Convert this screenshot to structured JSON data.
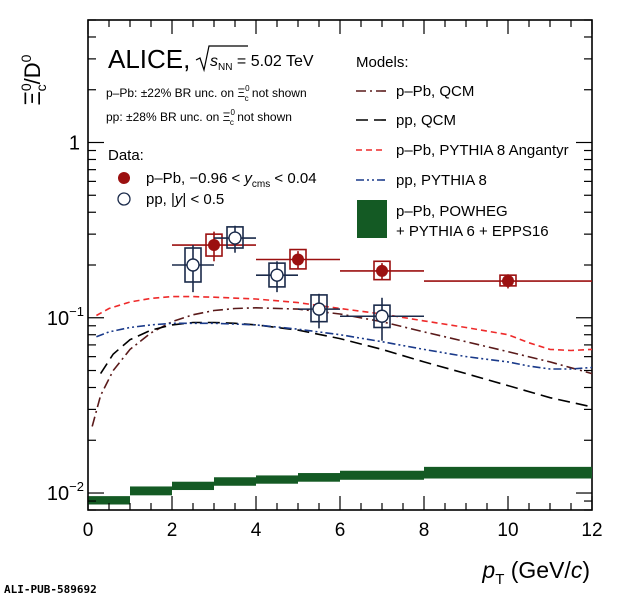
{
  "chart_data": {
    "type": "scatter",
    "title": "ALICE,",
    "energy": {
      "sym": "√s",
      "sub": "NN",
      "value": " = 5.02 TeV"
    },
    "notes": [
      {
        "lead": "p–Pb: ±22% BR unc. on Ξ",
        "sup": "0",
        "sub": "c",
        "tail": " not shown"
      },
      {
        "lead": "pp: ±28% BR unc. on Ξ",
        "sup": "0",
        "sub": "c",
        "tail": " not shown"
      }
    ],
    "ylabel": {
      "base": "Ξ",
      "sup": "0",
      "sub": "c",
      "mid": "/D",
      "sup2": "0"
    },
    "xlabel": {
      "p": "p",
      "sub": "T",
      "rest": " (GeV/",
      "c": "c",
      "close": ")"
    },
    "xlim": [
      0,
      12
    ],
    "ylim": [
      0.008,
      5
    ],
    "yscale": "log",
    "xticks": [
      "0",
      "2",
      "4",
      "6",
      "8",
      "10",
      "12"
    ],
    "yticks": [
      {
        "base": "10",
        "exp": "−2",
        "value": 0.01
      },
      {
        "base": "10",
        "exp": "−1",
        "value": 0.1
      },
      {
        "base": "1",
        "exp": "",
        "value": 1
      }
    ],
    "data_legend_title": "Data:",
    "models_legend_title": "Models:",
    "data_series": [
      {
        "name_parts": [
          "p–Pb, −0.96 < ",
          "y",
          "cms",
          " < 0.04"
        ],
        "color": "#9b1010",
        "marker": "filled-circle",
        "points": [
          {
            "x": 3.0,
            "xlo": 2.0,
            "xhi": 4.0,
            "y": 0.26,
            "stat": 0.05,
            "syslo": 0.225,
            "syshi": 0.3
          },
          {
            "x": 5.0,
            "xlo": 4.0,
            "xhi": 6.0,
            "y": 0.215,
            "stat": 0.025,
            "syslo": 0.19,
            "syshi": 0.245
          },
          {
            "x": 7.0,
            "xlo": 6.0,
            "xhi": 8.0,
            "y": 0.185,
            "stat": 0.02,
            "syslo": 0.165,
            "syshi": 0.21
          },
          {
            "x": 10.0,
            "xlo": 8.0,
            "xhi": 12.0,
            "y": 0.162,
            "stat": 0.015,
            "syslo": 0.152,
            "syshi": 0.175
          }
        ]
      },
      {
        "name_parts": [
          "pp, |",
          "y",
          "| < 0.5"
        ],
        "color": "#1a2a4a",
        "marker": "open-circle",
        "points": [
          {
            "x": 2.5,
            "xlo": 2.0,
            "xhi": 3.0,
            "y": 0.2,
            "stat": 0.06,
            "syslo": 0.16,
            "syshi": 0.25
          },
          {
            "x": 3.5,
            "xlo": 3.0,
            "xhi": 4.0,
            "y": 0.285,
            "stat": 0.05,
            "syslo": 0.25,
            "syshi": 0.33
          },
          {
            "x": 4.5,
            "xlo": 4.0,
            "xhi": 5.0,
            "y": 0.175,
            "stat": 0.035,
            "syslo": 0.15,
            "syshi": 0.205
          },
          {
            "x": 5.5,
            "xlo": 5.0,
            "xhi": 6.0,
            "y": 0.112,
            "stat": 0.025,
            "syslo": 0.095,
            "syshi": 0.135
          },
          {
            "x": 7.0,
            "xlo": 6.0,
            "xhi": 8.0,
            "y": 0.102,
            "stat": 0.028,
            "syslo": 0.088,
            "syshi": 0.118
          }
        ]
      }
    ],
    "model_series": [
      {
        "name": "p–Pb, QCM",
        "color": "#5a1a1a",
        "dash": "10,4,2,4",
        "x": [
          0.1,
          0.3,
          0.6,
          1.0,
          1.5,
          2.0,
          2.5,
          3.0,
          3.5,
          4.0,
          5.0,
          6.0,
          7.0,
          8.0,
          9.0,
          10.0,
          11.0,
          12.0
        ],
        "y": [
          0.024,
          0.036,
          0.05,
          0.066,
          0.082,
          0.095,
          0.104,
          0.11,
          0.113,
          0.114,
          0.112,
          0.105,
          0.095,
          0.083,
          0.073,
          0.064,
          0.056,
          0.048
        ]
      },
      {
        "name": "pp, QCM",
        "color": "#000000",
        "dash": "12,6",
        "x": [
          0.3,
          0.6,
          1.0,
          1.5,
          2.0,
          2.5,
          3.0,
          3.5,
          4.0,
          5.0,
          6.0,
          7.0,
          8.0,
          9.0,
          10.0,
          11.0,
          12.0
        ],
        "y": [
          0.048,
          0.062,
          0.075,
          0.085,
          0.091,
          0.094,
          0.094,
          0.093,
          0.091,
          0.085,
          0.076,
          0.066,
          0.056,
          0.048,
          0.041,
          0.035,
          0.031
        ]
      },
      {
        "name": "p–Pb, PYTHIA 8 Angantyr",
        "color": "#ee2a2a",
        "dash": "6,4",
        "x": [
          0.2,
          0.5,
          1.0,
          1.5,
          2.0,
          2.5,
          3.0,
          4.0,
          5.0,
          6.0,
          7.0,
          8.0,
          9.0,
          10.0,
          10.5,
          11.0,
          11.5,
          12.0
        ],
        "y": [
          0.103,
          0.113,
          0.123,
          0.129,
          0.132,
          0.132,
          0.131,
          0.128,
          0.122,
          0.113,
          0.105,
          0.096,
          0.088,
          0.08,
          0.072,
          0.066,
          0.065,
          0.066
        ]
      },
      {
        "name": "pp, PYTHIA 8",
        "color": "#1a3a8a",
        "dash": "8,3,2,3,2,3",
        "x": [
          0.2,
          0.5,
          1.0,
          1.5,
          2.0,
          3.0,
          4.0,
          5.0,
          6.0,
          7.0,
          8.0,
          9.0,
          10.0,
          10.5,
          11.0,
          11.5,
          12.0
        ],
        "y": [
          0.078,
          0.083,
          0.088,
          0.091,
          0.093,
          0.093,
          0.091,
          0.086,
          0.08,
          0.073,
          0.066,
          0.06,
          0.056,
          0.053,
          0.051,
          0.051,
          0.052
        ]
      }
    ],
    "band_series": {
      "name_lines": [
        "p–Pb, POWHEG",
        "+ PYTHIA 6 + EPPS16"
      ],
      "color": "#145a24",
      "bins": [
        {
          "xlo": 0,
          "xhi": 1,
          "ylo": 0.0086,
          "yhi": 0.0096
        },
        {
          "xlo": 1,
          "xhi": 2,
          "ylo": 0.0097,
          "yhi": 0.0109
        },
        {
          "xlo": 2,
          "xhi": 3,
          "ylo": 0.0104,
          "yhi": 0.0116
        },
        {
          "xlo": 3,
          "xhi": 4,
          "ylo": 0.011,
          "yhi": 0.0123
        },
        {
          "xlo": 4,
          "xhi": 5,
          "ylo": 0.0113,
          "yhi": 0.0126
        },
        {
          "xlo": 5,
          "xhi": 6,
          "ylo": 0.0116,
          "yhi": 0.013
        },
        {
          "xlo": 6,
          "xhi": 8,
          "ylo": 0.0119,
          "yhi": 0.0134
        },
        {
          "xlo": 8,
          "xhi": 12,
          "ylo": 0.0121,
          "yhi": 0.0141
        }
      ]
    },
    "footer": "ALI-PUB-589692"
  }
}
